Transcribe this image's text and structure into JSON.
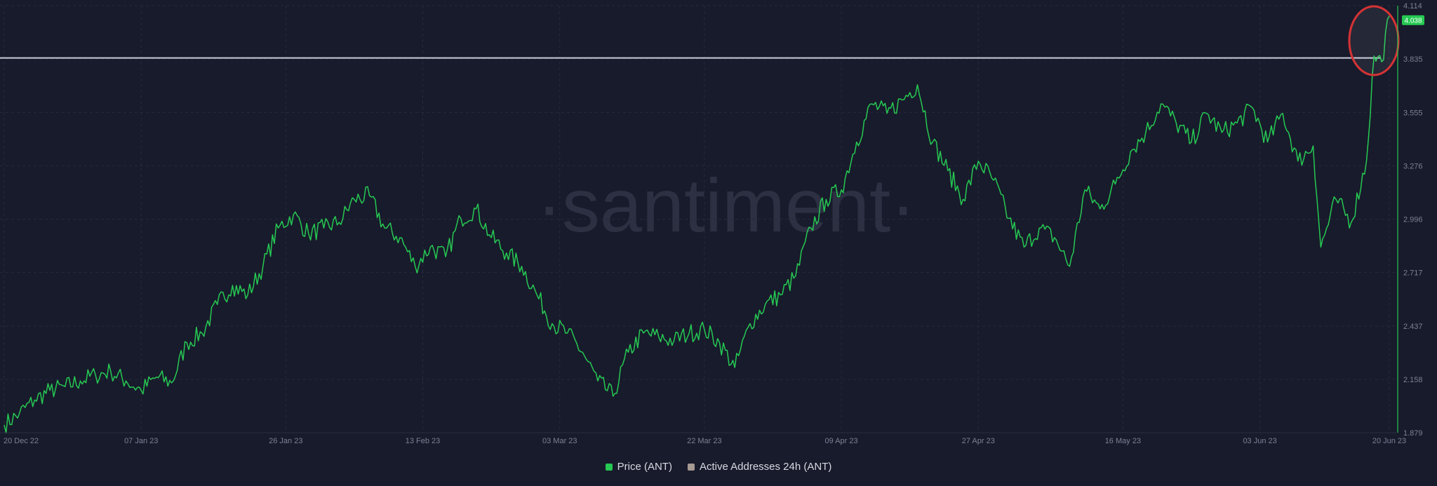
{
  "colors": {
    "background": "#181b2b",
    "grid": "#262a3c",
    "price_line": "#26c953",
    "active_addresses": "#a79a93",
    "resistance_line": "#c8ccd8",
    "highlight_circle": "#d63335",
    "watermark": "#2c3042",
    "current_value_badge": "#26c953"
  },
  "watermark": "·santiment·",
  "legend": [
    {
      "label": "Price (ANT)",
      "color": "#26c953"
    },
    {
      "label": "Active Addresses 24h (ANT)",
      "color": "#a79a93"
    }
  ],
  "chart_data": {
    "type": "line",
    "title": "",
    "xlabel": "",
    "ylabel": "",
    "x_ticks": [
      "20 Dec 22",
      "07 Jan 23",
      "26 Jan 23",
      "13 Feb 23",
      "03 Mar 23",
      "22 Mar 23",
      "09 Apr 23",
      "27 Apr 23",
      "16 May 23",
      "03 Jun 23",
      "20 Jun 23"
    ],
    "y_ticks": [
      "1.879",
      "2.158",
      "2.437",
      "2.717",
      "2.996",
      "3.276",
      "3.555",
      "3.835",
      "4.114"
    ],
    "ylim": [
      1.879,
      4.114
    ],
    "xlim": [
      "2022-12-20",
      "2023-06-20"
    ],
    "grid": true,
    "legend_position": "bottom",
    "current_value": "4.038",
    "resistance_level": 3.84,
    "series": [
      {
        "name": "Price (ANT)",
        "points": [
          [
            "2022-12-20",
            1.92
          ],
          [
            "2022-12-22",
            1.98
          ],
          [
            "2022-12-24",
            2.05
          ],
          [
            "2022-12-26",
            2.1
          ],
          [
            "2022-12-28",
            2.12
          ],
          [
            "2022-12-30",
            2.15
          ],
          [
            "2023-01-01",
            2.18
          ],
          [
            "2023-01-03",
            2.2
          ],
          [
            "2023-01-05",
            2.15
          ],
          [
            "2023-01-07",
            2.1
          ],
          [
            "2023-01-09",
            2.17
          ],
          [
            "2023-01-11",
            2.14
          ],
          [
            "2023-01-13",
            2.35
          ],
          [
            "2023-01-15",
            2.4
          ],
          [
            "2023-01-17",
            2.55
          ],
          [
            "2023-01-19",
            2.65
          ],
          [
            "2023-01-21",
            2.6
          ],
          [
            "2023-01-23",
            2.75
          ],
          [
            "2023-01-25",
            2.95
          ],
          [
            "2023-01-27",
            3.02
          ],
          [
            "2023-01-29",
            2.92
          ],
          [
            "2023-01-31",
            2.95
          ],
          [
            "2023-02-02",
            2.98
          ],
          [
            "2023-02-04",
            3.1
          ],
          [
            "2023-02-06",
            3.12
          ],
          [
            "2023-02-08",
            2.95
          ],
          [
            "2023-02-10",
            2.9
          ],
          [
            "2023-02-12",
            2.75
          ],
          [
            "2023-02-14",
            2.85
          ],
          [
            "2023-02-16",
            2.8
          ],
          [
            "2023-02-18",
            3.0
          ],
          [
            "2023-02-20",
            3.05
          ],
          [
            "2023-02-22",
            2.9
          ],
          [
            "2023-02-24",
            2.82
          ],
          [
            "2023-02-26",
            2.75
          ],
          [
            "2023-02-28",
            2.6
          ],
          [
            "2023-03-02",
            2.45
          ],
          [
            "2023-03-04",
            2.4
          ],
          [
            "2023-03-06",
            2.3
          ],
          [
            "2023-03-08",
            2.15
          ],
          [
            "2023-03-10",
            2.07
          ],
          [
            "2023-03-12",
            2.3
          ],
          [
            "2023-03-14",
            2.4
          ],
          [
            "2023-03-16",
            2.38
          ],
          [
            "2023-03-18",
            2.36
          ],
          [
            "2023-03-20",
            2.4
          ],
          [
            "2023-03-22",
            2.42
          ],
          [
            "2023-03-24",
            2.35
          ],
          [
            "2023-03-26",
            2.22
          ],
          [
            "2023-03-28",
            2.45
          ],
          [
            "2023-03-30",
            2.55
          ],
          [
            "2023-04-01",
            2.6
          ],
          [
            "2023-04-03",
            2.7
          ],
          [
            "2023-04-05",
            2.95
          ],
          [
            "2023-04-07",
            3.1
          ],
          [
            "2023-04-09",
            3.15
          ],
          [
            "2023-04-11",
            3.4
          ],
          [
            "2023-04-13",
            3.6
          ],
          [
            "2023-04-15",
            3.55
          ],
          [
            "2023-04-17",
            3.62
          ],
          [
            "2023-04-19",
            3.7
          ],
          [
            "2023-04-21",
            3.4
          ],
          [
            "2023-04-23",
            3.25
          ],
          [
            "2023-04-25",
            3.1
          ],
          [
            "2023-04-27",
            3.3
          ],
          [
            "2023-04-29",
            3.2
          ],
          [
            "2023-05-01",
            3.0
          ],
          [
            "2023-05-03",
            2.85
          ],
          [
            "2023-05-05",
            2.95
          ],
          [
            "2023-05-07",
            2.9
          ],
          [
            "2023-05-09",
            2.75
          ],
          [
            "2023-05-11",
            3.15
          ],
          [
            "2023-05-13",
            3.05
          ],
          [
            "2023-05-15",
            3.18
          ],
          [
            "2023-05-17",
            3.35
          ],
          [
            "2023-05-19",
            3.45
          ],
          [
            "2023-05-21",
            3.6
          ],
          [
            "2023-05-23",
            3.5
          ],
          [
            "2023-05-25",
            3.4
          ],
          [
            "2023-05-27",
            3.55
          ],
          [
            "2023-05-29",
            3.45
          ],
          [
            "2023-05-31",
            3.5
          ],
          [
            "2023-06-02",
            3.58
          ],
          [
            "2023-06-04",
            3.4
          ],
          [
            "2023-06-06",
            3.55
          ],
          [
            "2023-06-08",
            3.3
          ],
          [
            "2023-06-10",
            3.38
          ],
          [
            "2023-06-11",
            2.85
          ],
          [
            "2023-06-13",
            3.1
          ],
          [
            "2023-06-15",
            2.98
          ],
          [
            "2023-06-17",
            3.3
          ],
          [
            "2023-06-18",
            3.85
          ],
          [
            "2023-06-19",
            3.82
          ],
          [
            "2023-06-20",
            4.06
          ]
        ]
      }
    ]
  }
}
